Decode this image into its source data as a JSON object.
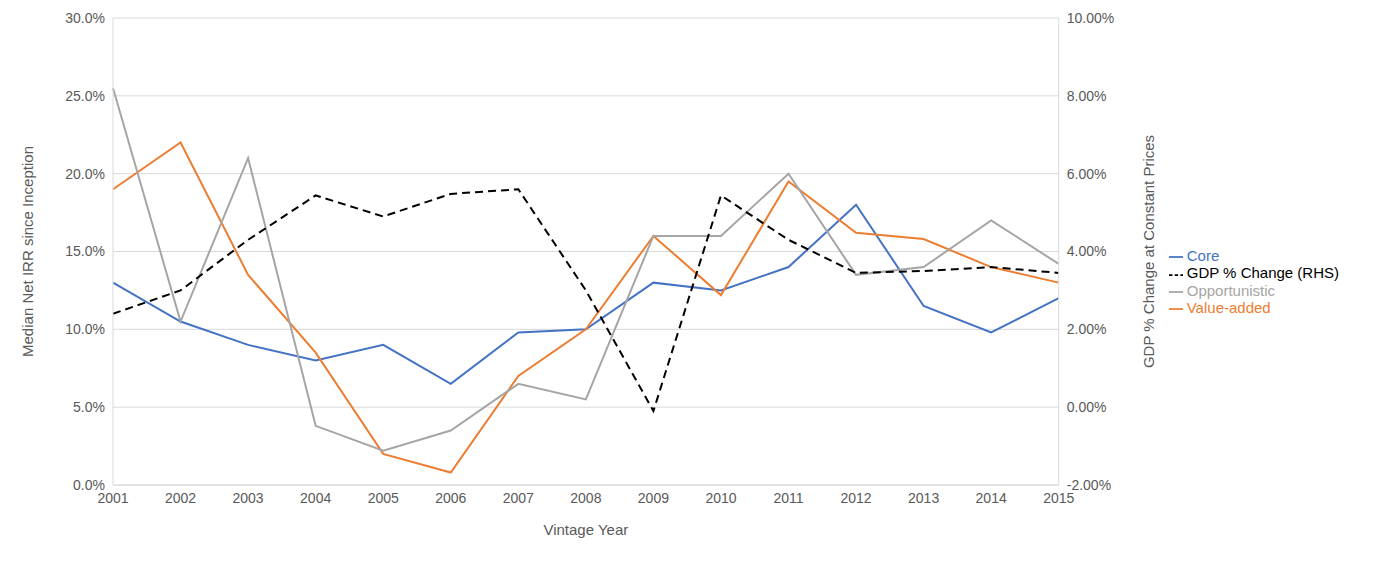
{
  "chart_data": {
    "type": "line",
    "x_label": "Vintage Year",
    "y_label": "Median Net IRR since Inception",
    "y2_label": "GDP % Change at Constant Prices",
    "categories": [
      "2001",
      "2002",
      "2003",
      "2004",
      "2005",
      "2006",
      "2007",
      "2008",
      "2009",
      "2010",
      "2011",
      "2012",
      "2013",
      "2014",
      "2015"
    ],
    "series": [
      {
        "name": "Core",
        "color": "#4472c4",
        "line_style": "solid",
        "marker": "none",
        "values": [
          13.0,
          10.5,
          9.0,
          8.0,
          9.0,
          6.5,
          9.8,
          10.0,
          13.0,
          12.5,
          14.0,
          18.0,
          11.5,
          9.8,
          12.0
        ]
      },
      {
        "name": "Value-added",
        "color": "#ed7d31",
        "line_style": "solid",
        "marker": "none",
        "values": [
          19.0,
          22.0,
          13.5,
          8.5,
          2.0,
          0.8,
          7.0,
          10.0,
          16.0,
          12.2,
          19.5,
          16.2,
          15.8,
          14.0,
          13.0
        ]
      },
      {
        "name": "Opportunistic",
        "color": "#a5a5a5",
        "line_style": "solid",
        "marker": "none",
        "values": [
          25.5,
          10.5,
          21.0,
          3.8,
          2.2,
          3.5,
          6.5,
          5.5,
          16.0,
          16.0,
          20.0,
          13.5,
          14.0,
          17.0,
          14.2
        ]
      },
      {
        "name": "GDP % Change (RHS)",
        "color": "#000000",
        "line_style": "dashed",
        "marker": "none",
        "axis": "y2",
        "values": [
          2.4,
          3.0,
          4.3,
          5.44,
          4.9,
          5.48,
          5.6,
          3.0,
          -0.1,
          5.44,
          4.3,
          3.45,
          3.5,
          3.6,
          3.45
        ]
      }
    ],
    "ylim": [
      0,
      30
    ],
    "yticks": [
      {
        "value": 0,
        "label": "0.0%"
      },
      {
        "value": 5,
        "label": "5.0%"
      },
      {
        "value": 10,
        "label": "10.0%"
      },
      {
        "value": 15,
        "label": "15.0%"
      },
      {
        "value": 20,
        "label": "20.0%"
      },
      {
        "value": 25,
        "label": "25.0%"
      },
      {
        "value": 30,
        "label": "30.0%"
      }
    ],
    "y2lim": [
      -2,
      10
    ],
    "y2ticks": [
      {
        "value": -2,
        "label": "-2.00%"
      },
      {
        "value": 0,
        "label": "0.00%"
      },
      {
        "value": 2,
        "label": "2.00%"
      },
      {
        "value": 4,
        "label": "4.00%"
      },
      {
        "value": 6,
        "label": "6.00%"
      },
      {
        "value": 8,
        "label": "8.00%"
      },
      {
        "value": 10,
        "label": "10.00%"
      }
    ],
    "grid": true,
    "legend": "right"
  }
}
